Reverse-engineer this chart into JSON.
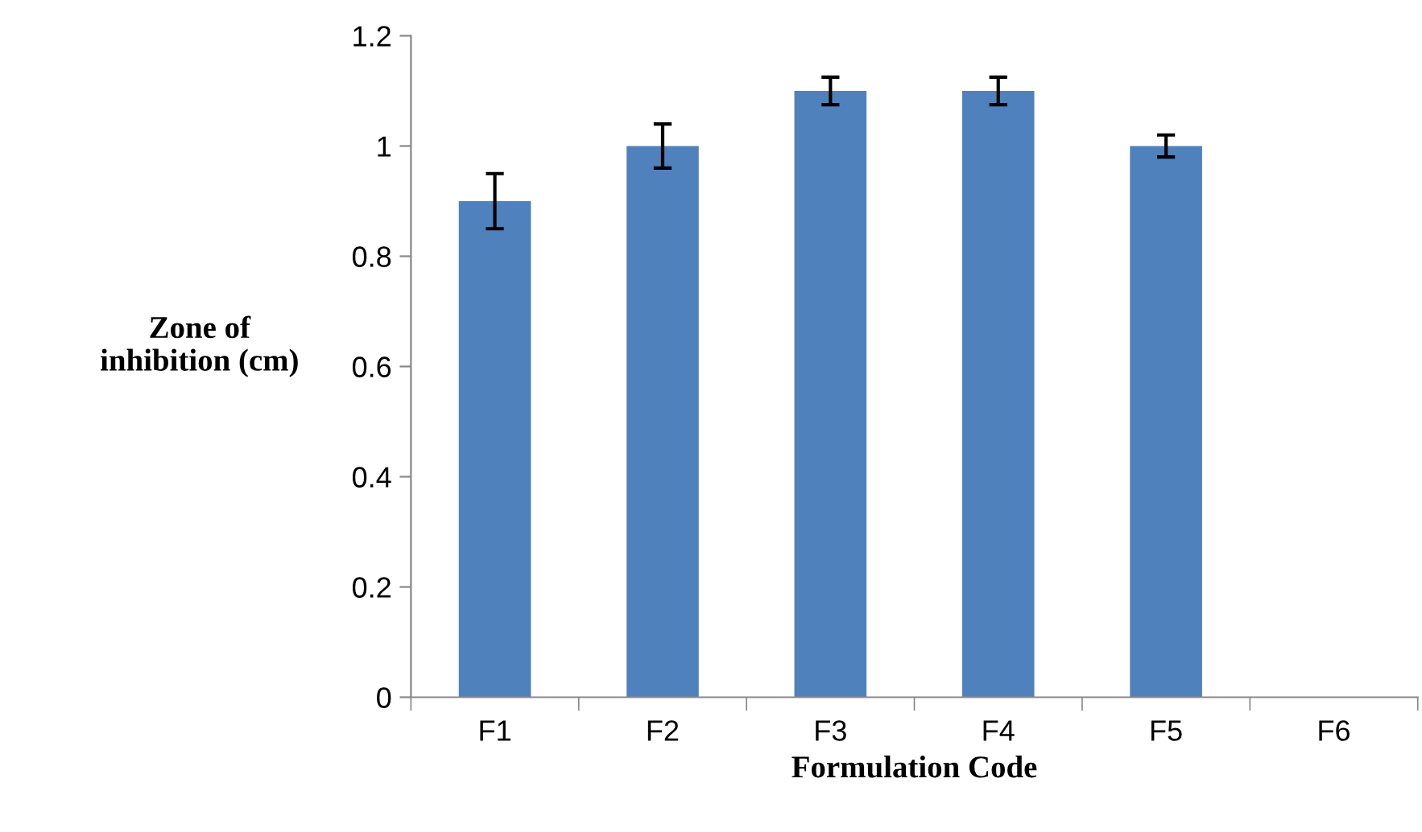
{
  "chart_data": {
    "type": "bar",
    "xlabel": "Formulation Code",
    "ylabel": "Zone of\ninhibition (cm)",
    "categories": [
      "F1",
      "F2",
      "F3",
      "F4",
      "F5",
      "F6"
    ],
    "series": [
      {
        "color": "#4f81bd",
        "values": [
          0.9,
          1.0,
          1.1,
          1.1,
          1.0,
          null
        ],
        "errors": [
          0.05,
          0.04,
          0.025,
          0.025,
          0.02,
          null
        ]
      }
    ],
    "ylim": [
      0,
      1.2
    ],
    "yticks": [
      0,
      0.2,
      0.4,
      0.6,
      0.8,
      1,
      1.2
    ],
    "grid": false,
    "legend": false
  }
}
